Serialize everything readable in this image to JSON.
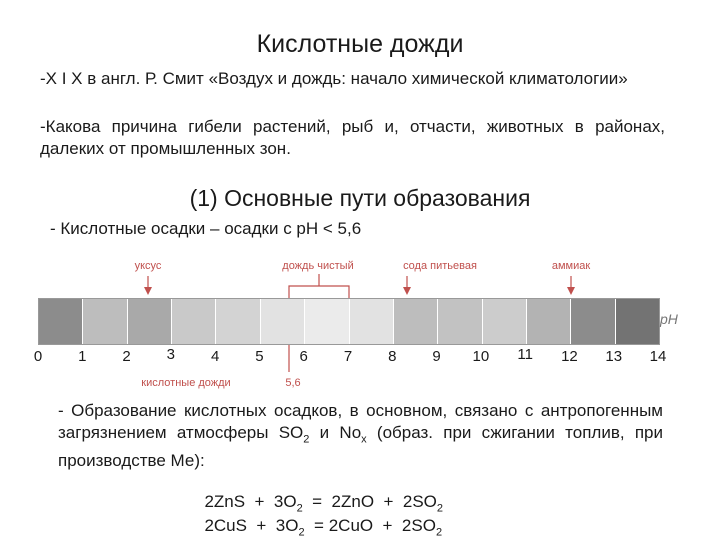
{
  "title": "Кислотные дожди",
  "intro": {
    "line1": "-X I X  в англ. Р. Смит «Воздух и дождь: начало химической климатологии»",
    "line2": "-Какова причина гибели растений, рыб и, отчасти, животных в районах, далеких от промышленных зон."
  },
  "section": {
    "heading": "(1) Основные пути образования",
    "definition": "- Кислотные осадки – осадки с рН < 5,6"
  },
  "scale": {
    "unit": "pH",
    "numbers": [
      "0",
      "1",
      "2",
      "3",
      "4",
      "5",
      "6",
      "7",
      "8",
      "9",
      "10",
      "11",
      "12",
      "13",
      "14"
    ],
    "segment_colors": [
      "#8c8c8c",
      "#bdbdbd",
      "#a9a9a9",
      "#c9c9c9",
      "#d3d3d3",
      "#e2e2e2",
      "#ebebeb",
      "#e2e2e2",
      "#bdbdbd",
      "#c2c2c2",
      "#cccccc",
      "#b3b3b3",
      "#8c8c8c",
      "#737373"
    ],
    "marker_color": "#c0504d",
    "markers": {
      "vinegar": "уксус",
      "clean_rain": "дождь чистый",
      "baking_soda": "сода питьевая",
      "ammonia": "аммиак",
      "acid_rain": "кислотные дожди",
      "threshold": "5,6"
    }
  },
  "bottom": {
    "text_before": "- Образование кислотных осадков, в основном, связано с антропогенным загрязнением атмосферы SO",
    "sub1": "2",
    "text_mid": " и No",
    "sub2": "x",
    "text_after": " (образ. при сжигании топлив, при производстве Ме):"
  },
  "equations": [
    {
      "p1": "2ZnS  +  3O",
      "s1": "2",
      "p2": "  =  2ZnO  +  2SO",
      "s2": "2"
    },
    {
      "p1": "2CuS  +  3O",
      "s1": "2",
      "p2": "  = 2CuO  +  2SO",
      "s2": "2"
    }
  ]
}
